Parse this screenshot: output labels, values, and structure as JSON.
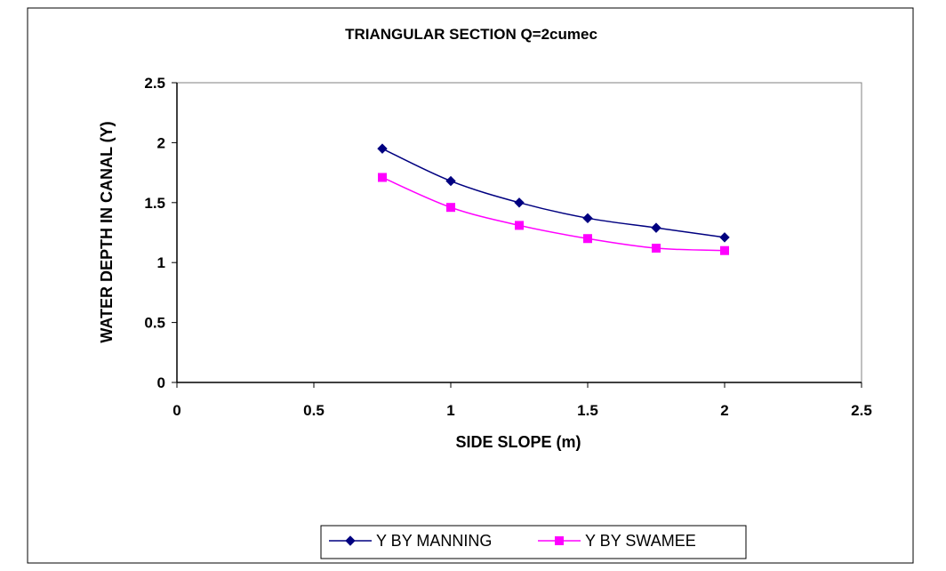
{
  "chart_data": {
    "type": "line",
    "title": "TRIANGULAR SECTION Q=2cumec",
    "xlabel": "SIDE SLOPE (m)",
    "ylabel": "WATER DEPTH IN CANAL (Y)",
    "xlim": [
      0,
      2.5
    ],
    "ylim": [
      0,
      2.5
    ],
    "xticks": [
      "0",
      "0.5",
      "1",
      "1.5",
      "2",
      "2.5"
    ],
    "yticks": [
      "0",
      "0.5",
      "1",
      "1.5",
      "2",
      "2.5"
    ],
    "grid": false,
    "legend_position": "bottom",
    "x": [
      0.75,
      1.0,
      1.25,
      1.5,
      1.75,
      2.0
    ],
    "series": [
      {
        "name": "Y BY MANNING",
        "values": [
          1.95,
          1.68,
          1.5,
          1.37,
          1.29,
          1.21
        ],
        "color": "#000080",
        "marker": "diamond"
      },
      {
        "name": "Y BY SWAMEE",
        "values": [
          1.71,
          1.46,
          1.31,
          1.2,
          1.12,
          1.1
        ],
        "color": "#FF00FF",
        "marker": "square"
      }
    ]
  }
}
